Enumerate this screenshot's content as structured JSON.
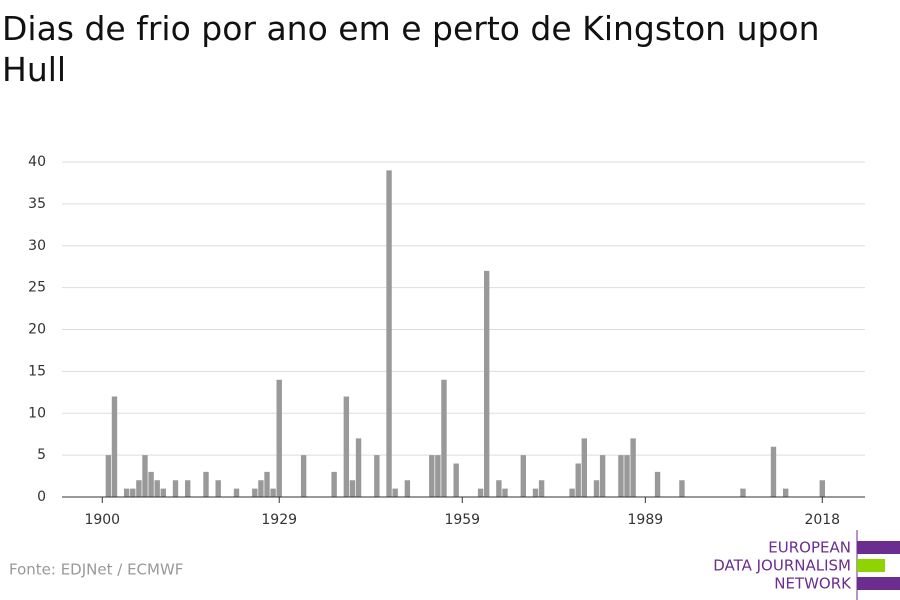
{
  "chart_data": {
    "type": "bar",
    "title_lines": [
      "Dias de frio por ano em e perto de Kingston upon",
      "Hull"
    ],
    "x": [
      1901,
      1902,
      1904,
      1905,
      1906,
      1907,
      1908,
      1909,
      1910,
      1912,
      1914,
      1917,
      1919,
      1922,
      1925,
      1926,
      1927,
      1928,
      1929,
      1933,
      1938,
      1940,
      1941,
      1942,
      1945,
      1947,
      1948,
      1950,
      1954,
      1955,
      1956,
      1958,
      1962,
      1963,
      1965,
      1966,
      1969,
      1971,
      1972,
      1977,
      1978,
      1979,
      1981,
      1982,
      1985,
      1986,
      1987,
      1991,
      1995,
      2005,
      2010,
      2012,
      2018
    ],
    "values": [
      5,
      12,
      1,
      1,
      2,
      5,
      3,
      2,
      1,
      2,
      2,
      3,
      2,
      1,
      1,
      2,
      3,
      1,
      14,
      5,
      3,
      12,
      2,
      7,
      5,
      39,
      1,
      2,
      5,
      5,
      14,
      4,
      1,
      27,
      2,
      1,
      5,
      1,
      2,
      1,
      4,
      7,
      2,
      5,
      5,
      5,
      7,
      3,
      2,
      1,
      6,
      1,
      2
    ],
    "color": "#999999",
    "xlim": [
      1893.4,
      2025
    ],
    "xticks": [
      1900,
      1929,
      1959,
      1989,
      2018
    ],
    "ylim": [
      0,
      40
    ],
    "yticks": [
      0,
      5,
      10,
      15,
      20,
      25,
      30,
      35,
      40
    ],
    "grid": true,
    "source": "Fonte: EDJNet / ECMWF",
    "logo": [
      "EUROPEAN",
      "DATA JOURNALISM",
      "NETWORK"
    ]
  }
}
